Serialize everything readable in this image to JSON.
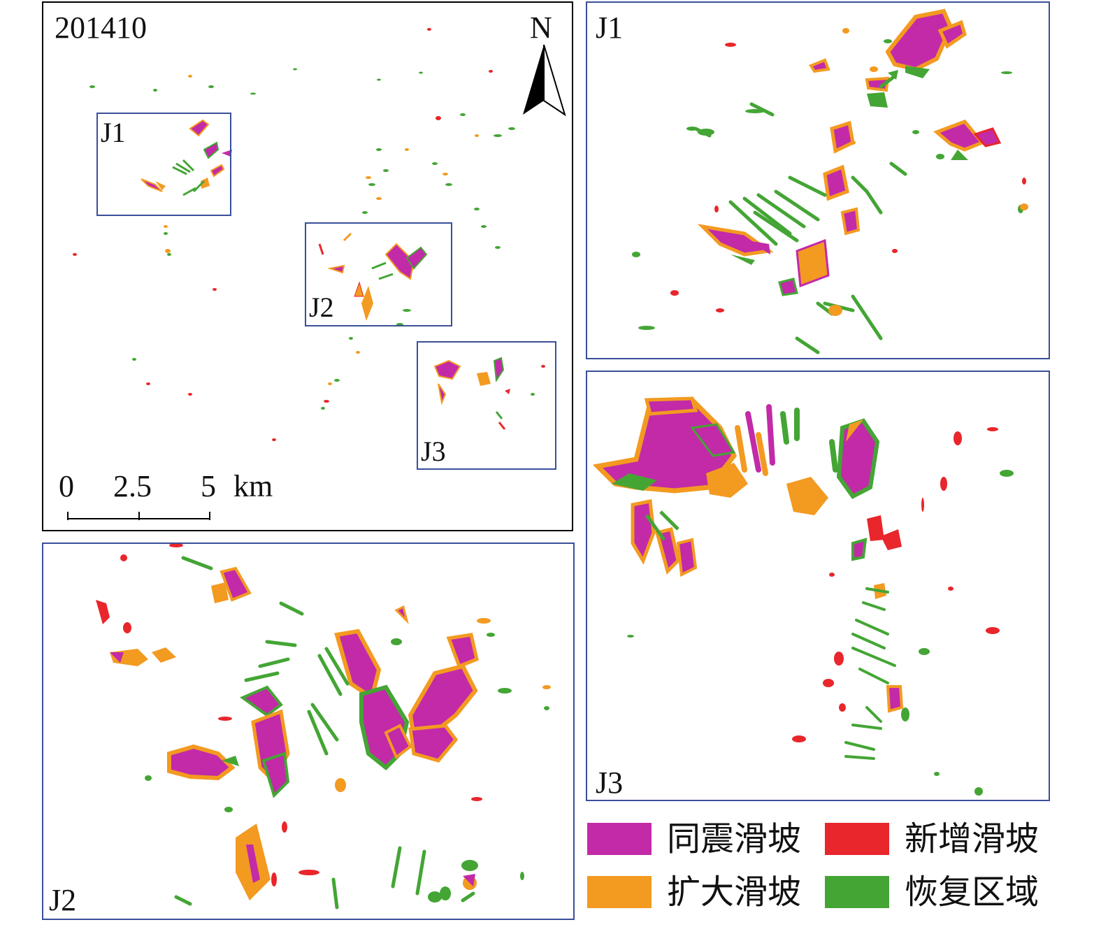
{
  "colors": {
    "coseismic": "#c22aa8",
    "enlarged": "#f39a21",
    "new": "#e8262b",
    "recovery": "#44a535",
    "frame_border": "#3a4f9a"
  },
  "overview": {
    "date_label": "201410",
    "north_label": "N",
    "scale_ticks": [
      "0",
      "2.5",
      "5"
    ],
    "scale_unit": "km",
    "inset_labels": [
      "J1",
      "J2",
      "J3"
    ]
  },
  "insets": {
    "j1_label": "J1",
    "j2_label": "J2",
    "j3_label": "J3"
  },
  "legend": {
    "coseismic_label": "同震滑坡",
    "new_label": "新增滑坡",
    "enlarged_label": "扩大滑坡",
    "recovery_label": "恢复区域"
  },
  "icons": [
    "north-arrow-icon"
  ]
}
